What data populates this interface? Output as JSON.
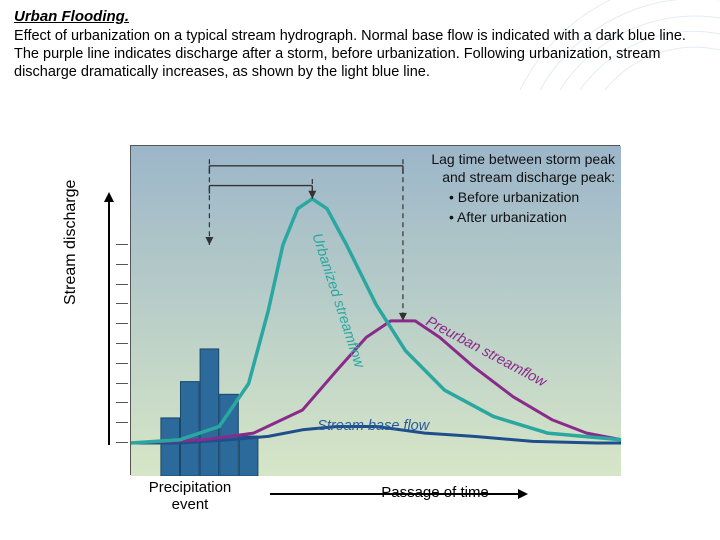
{
  "header": {
    "title": "Urban Flooding.",
    "description": "Effect of urbanization on a typical stream hydrograph.  Normal base flow is indicated with a dark blue line.  The purple line indicates discharge after a storm, before urbanization.  Following urbanization, stream discharge dramatically increases, as shown by the light blue line."
  },
  "chart": {
    "type": "line+bar",
    "background_gradient": {
      "top": "#9cb6c9",
      "bottom": "#d6e6c7"
    },
    "border_color": "#555555",
    "y_axis": {
      "label": "Stream discharge",
      "ticks": [
        0.3,
        0.36,
        0.42,
        0.48,
        0.54,
        0.6,
        0.66,
        0.72,
        0.78,
        0.84,
        0.9
      ],
      "arrow": true
    },
    "x_axis": {
      "precip_label": "Precipitation\nevent",
      "passage_label": "Passage of time",
      "arrow": true
    },
    "legend": {
      "title_line1": "Lag time between storm peak",
      "title_line2": "and stream discharge peak:",
      "items": [
        "Before urbanization",
        "After urbanization"
      ]
    },
    "bars": {
      "color": "#2b6a9b",
      "border_color": "#1a4868",
      "x_positions": [
        0.08,
        0.12,
        0.16,
        0.2,
        0.24
      ],
      "heights": [
        0.32,
        0.52,
        0.7,
        0.45,
        0.22
      ],
      "bar_width": 0.038
    },
    "curves": {
      "base_flow": {
        "color": "#1f4e8c",
        "width": 3,
        "label": "Stream base flow",
        "label_color": "#2a5a95",
        "label_pos": {
          "x": 0.38,
          "y": 0.86,
          "rotate": 0
        },
        "points": [
          [
            0.0,
            0.9
          ],
          [
            0.1,
            0.9
          ],
          [
            0.2,
            0.89
          ],
          [
            0.28,
            0.88
          ],
          [
            0.35,
            0.86
          ],
          [
            0.42,
            0.85
          ],
          [
            0.5,
            0.85
          ],
          [
            0.6,
            0.87
          ],
          [
            0.7,
            0.88
          ],
          [
            0.82,
            0.895
          ],
          [
            0.95,
            0.9
          ],
          [
            1.0,
            0.9
          ]
        ]
      },
      "preurban": {
        "color": "#8a2a8a",
        "width": 3,
        "label": "Preurban streamflow",
        "label_color": "#8a2a8a",
        "label_pos": {
          "x": 0.6,
          "y": 0.54,
          "rotate": 28
        },
        "points": [
          [
            0.0,
            0.9
          ],
          [
            0.15,
            0.89
          ],
          [
            0.25,
            0.87
          ],
          [
            0.35,
            0.8
          ],
          [
            0.42,
            0.68
          ],
          [
            0.48,
            0.58
          ],
          [
            0.53,
            0.53
          ],
          [
            0.58,
            0.53
          ],
          [
            0.63,
            0.58
          ],
          [
            0.7,
            0.67
          ],
          [
            0.78,
            0.76
          ],
          [
            0.86,
            0.83
          ],
          [
            0.93,
            0.87
          ],
          [
            1.0,
            0.89
          ]
        ]
      },
      "urbanized": {
        "color": "#2aa7a0",
        "width": 3.5,
        "label": "Urbanized streamflow",
        "label_color": "#2aa7a0",
        "label_pos": {
          "x": 0.37,
          "y": 0.27,
          "rotate": 72
        },
        "points": [
          [
            0.0,
            0.9
          ],
          [
            0.1,
            0.89
          ],
          [
            0.18,
            0.85
          ],
          [
            0.24,
            0.72
          ],
          [
            0.28,
            0.5
          ],
          [
            0.31,
            0.3
          ],
          [
            0.34,
            0.19
          ],
          [
            0.37,
            0.16
          ],
          [
            0.4,
            0.19
          ],
          [
            0.44,
            0.3
          ],
          [
            0.5,
            0.48
          ],
          [
            0.56,
            0.62
          ],
          [
            0.64,
            0.74
          ],
          [
            0.74,
            0.82
          ],
          [
            0.85,
            0.87
          ],
          [
            1.0,
            0.89
          ]
        ]
      }
    },
    "lag_markers": {
      "storm_peak_x": 0.16,
      "urban_peak_x": 0.37,
      "preurban_peak_x": 0.555,
      "line_color": "#333333",
      "bracket_before": {
        "y": 0.06,
        "from": 0.16,
        "to": 0.555
      },
      "bracket_after": {
        "y": 0.12,
        "from": 0.16,
        "to": 0.37
      }
    }
  },
  "decor": {
    "arc_color": "#8fb8d6"
  }
}
